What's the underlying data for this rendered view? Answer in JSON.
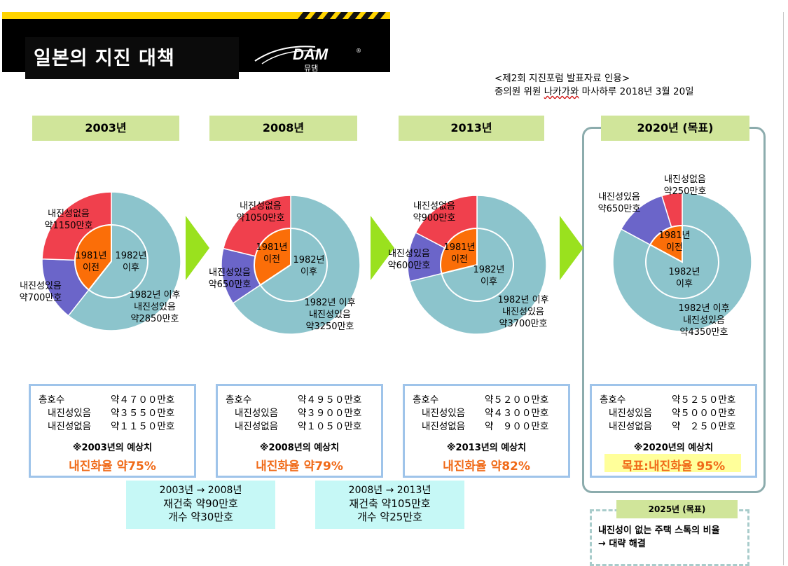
{
  "header": {
    "title": "일본의 지진 대책",
    "logo_text": "DAM",
    "logo_sub": "뮤댐"
  },
  "source": {
    "line1": "<제2회 지진포럼 발표자료 인용>",
    "line2_a": "중의원 위원 ",
    "line2_b": "나카가와",
    "line2_c": " 마사하루 2018년 3월 20일"
  },
  "colors": {
    "after1982": "#8cc4cc",
    "before1981": "#fb6e08",
    "with_quake": "#6b65c9",
    "without_quake": "#f0404d",
    "arrow": "#9ae11e",
    "yearbox": "#d0e59a",
    "rate": "#f06a18"
  },
  "chart_data": [
    {
      "type": "pie",
      "title": "2003년",
      "outer": [
        {
          "label": "1982년 이후 내진성있음",
          "value": 2850,
          "unit": "만호",
          "text": "1982년 이후\n내진성있음\n약2850만호"
        },
        {
          "label": "내진성있음",
          "value": 700,
          "unit": "만호",
          "text": "내진성있음\n약700만호"
        },
        {
          "label": "내진성없음",
          "value": 1150,
          "unit": "만호",
          "text": "내진성없음\n약1150만호"
        }
      ],
      "inner": [
        {
          "label": "1982년 이후",
          "value": 2850,
          "text": "1982년\n이후"
        },
        {
          "label": "1981년 이전",
          "value": 1850,
          "text": "1981년\n이전"
        }
      ],
      "stats": {
        "total_label": "총호수",
        "total": "약４７００만호",
        "yes_label": "내진성있음",
        "yes": "약３５５０만호",
        "no_label": "내진성없음",
        "no": "약１１５０만호"
      },
      "note": "※2003년의 예상치",
      "rate": "내진화율  약75%"
    },
    {
      "type": "pie",
      "title": "2008년",
      "outer": [
        {
          "label": "1982년 이후 내진성있음",
          "value": 3250,
          "unit": "만호",
          "text": "1982년 이후\n내진성있음\n약3250만호"
        },
        {
          "label": "내진성있음",
          "value": 650,
          "unit": "만호",
          "text": "내진성있음\n약650만호"
        },
        {
          "label": "내진성없음",
          "value": 1050,
          "unit": "만호",
          "text": "내진성없음\n약1050만호"
        }
      ],
      "inner": [
        {
          "label": "1982년 이후",
          "value": 3250,
          "text": "1982년\n이후"
        },
        {
          "label": "1981년 이전",
          "value": 1700,
          "text": "1981년\n이전"
        }
      ],
      "stats": {
        "total_label": "총호수",
        "total": "약４９５０만호",
        "yes_label": "내진성있음",
        "yes": "약３９００만호",
        "no_label": "내진성없음",
        "no": "약１０５０만호"
      },
      "note": "※2008년의 예상치",
      "rate": "내진화율  약79%"
    },
    {
      "type": "pie",
      "title": "2013년",
      "outer": [
        {
          "label": "1982년 이후 내진성있음",
          "value": 3700,
          "unit": "만호",
          "text": "1982년 이후\n내진성있음\n약3700만호"
        },
        {
          "label": "내진성있음",
          "value": 600,
          "unit": "만호",
          "text": "내진성있음\n약600만호"
        },
        {
          "label": "내진성없음",
          "value": 900,
          "unit": "만호",
          "text": "내진성없음\n약900만호"
        }
      ],
      "inner": [
        {
          "label": "1982년 이후",
          "value": 3700,
          "text": "1982년\n이후"
        },
        {
          "label": "1981년 이전",
          "value": 1500,
          "text": "1981년\n이전"
        }
      ],
      "stats": {
        "total_label": "총호수",
        "total": "약５２００만호",
        "yes_label": "내진성있음",
        "yes": "약４３００만호",
        "no_label": "내진성없음",
        "no": "약　９００만호"
      },
      "note": "※2013년의 예상치",
      "rate": "내진화율  약82%"
    },
    {
      "type": "pie",
      "title": "2020년 (목표)",
      "outer": [
        {
          "label": "1982년 이후 내진성있음",
          "value": 4350,
          "unit": "만호",
          "text": "1982년 이후\n내진성있음\n약4350만호"
        },
        {
          "label": "내진성있음",
          "value": 650,
          "unit": "만호",
          "text": "내진성있음\n약650만호"
        },
        {
          "label": "내진성없음",
          "value": 250,
          "unit": "만호",
          "text": "내진성없음\n약250만호"
        }
      ],
      "inner": [
        {
          "label": "1982년 이후",
          "value": 4350,
          "text": "1982년\n이후"
        },
        {
          "label": "1981년 이전",
          "value": 900,
          "text": "1981년\n이전"
        }
      ],
      "stats": {
        "total_label": "총호수",
        "total": "약５２５０만호",
        "yes_label": "내진성있음",
        "yes": "약５０００만호",
        "no_label": "내진성없음",
        "no": "약　２５０만호"
      },
      "note": "※2020년의 예상치",
      "rate": "목표:내진화율 95%"
    }
  ],
  "rebuild": [
    {
      "title": "2003년 → 2008년",
      "line1": "재건축  약90만호",
      "line2": "개수  약30만호"
    },
    {
      "title": "2008년 → 2013년",
      "line1": "재건축  약105만호",
      "line2": "개수  약25만호"
    }
  ],
  "goal2025": {
    "tag": "2025년 (목표)",
    "line1": "내진성이 없는 주택 스톡의 비율",
    "line2": "→ 대략 해결"
  }
}
